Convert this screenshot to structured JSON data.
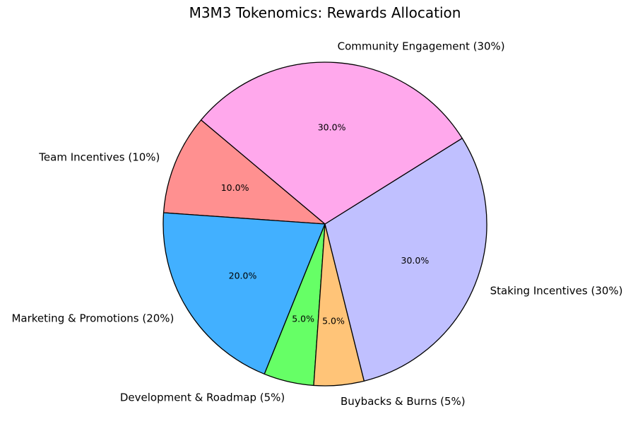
{
  "chart_data": {
    "type": "pie",
    "title": "M3M3 Tokenomics: Rewards Allocation",
    "start_angle_deg": 140,
    "direction": "counterclockwise",
    "edge_color": "#000000",
    "slices": [
      {
        "label": "Team Incentives (10%)",
        "value": 10,
        "pct_label": "10.0%",
        "color": "#ff9090"
      },
      {
        "label": "Marketing & Promotions (20%)",
        "value": 20,
        "pct_label": "20.0%",
        "color": "#42b0ff"
      },
      {
        "label": "Development & Roadmap (5%)",
        "value": 5,
        "pct_label": "5.0%",
        "color": "#66ff66"
      },
      {
        "label": "Buybacks & Burns (5%)",
        "value": 5,
        "pct_label": "5.0%",
        "color": "#ffc478"
      },
      {
        "label": "Staking Incentives (30%)",
        "value": 30,
        "pct_label": "30.0%",
        "color": "#c0c0ff"
      },
      {
        "label": "Community Engagement (30%)",
        "value": 30,
        "pct_label": "30.0%",
        "color": "#ffa8ec"
      }
    ]
  }
}
